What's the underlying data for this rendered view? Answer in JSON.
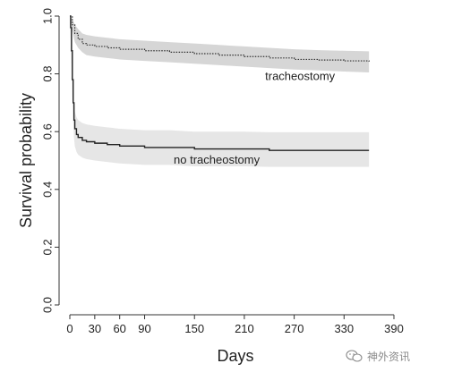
{
  "chart_data": {
    "type": "line",
    "ylabel": "Survival probability",
    "xlabel": "Days",
    "xlim": [
      0,
      390
    ],
    "ylim": [
      0.0,
      1.0
    ],
    "x_ticks": [
      0,
      30,
      60,
      90,
      150,
      210,
      270,
      330,
      390
    ],
    "x_tick_labels": [
      "0",
      "30",
      "60",
      "90",
      "150",
      "210",
      "270",
      "330",
      "390"
    ],
    "y_ticks": [
      0.0,
      0.2,
      0.4,
      0.6,
      0.8,
      1.0
    ],
    "y_tick_labels": [
      "0.0",
      "0.2",
      "0.4",
      "0.6",
      "0.8",
      "1.0"
    ],
    "grid": false,
    "series": [
      {
        "name": "tracheostomy",
        "line_style": "dotted",
        "line_color": "#333333",
        "band_color": "#d6d6d6",
        "x": [
          0,
          3,
          6,
          10,
          15,
          20,
          30,
          45,
          60,
          90,
          120,
          150,
          180,
          210,
          240,
          270,
          300,
          330,
          360
        ],
        "y": [
          1.0,
          0.97,
          0.94,
          0.92,
          0.905,
          0.9,
          0.895,
          0.89,
          0.885,
          0.88,
          0.875,
          0.87,
          0.865,
          0.86,
          0.855,
          0.85,
          0.848,
          0.845,
          0.842
        ],
        "lower": [
          1.0,
          0.95,
          0.91,
          0.89,
          0.875,
          0.865,
          0.86,
          0.855,
          0.85,
          0.845,
          0.84,
          0.835,
          0.83,
          0.825,
          0.82,
          0.815,
          0.812,
          0.808,
          0.805
        ],
        "upper": [
          1.0,
          0.99,
          0.97,
          0.955,
          0.94,
          0.935,
          0.93,
          0.925,
          0.92,
          0.915,
          0.91,
          0.905,
          0.9,
          0.895,
          0.89,
          0.885,
          0.882,
          0.88,
          0.878
        ]
      },
      {
        "name": "no tracheostomy",
        "line_style": "solid",
        "line_color": "#222222",
        "band_color": "#e6e6e6",
        "x": [
          0,
          1,
          2,
          3,
          4,
          5,
          6,
          8,
          10,
          15,
          20,
          30,
          45,
          60,
          90,
          120,
          150,
          180,
          210,
          240,
          270,
          300,
          330,
          360
        ],
        "y": [
          1.0,
          0.96,
          0.88,
          0.78,
          0.7,
          0.64,
          0.61,
          0.59,
          0.58,
          0.57,
          0.565,
          0.56,
          0.555,
          0.55,
          0.545,
          0.545,
          0.54,
          0.54,
          0.54,
          0.535,
          0.535,
          0.535,
          0.535,
          0.535
        ],
        "lower": [
          1.0,
          0.92,
          0.82,
          0.72,
          0.64,
          0.58,
          0.55,
          0.53,
          0.52,
          0.51,
          0.505,
          0.5,
          0.495,
          0.49,
          0.485,
          0.485,
          0.48,
          0.48,
          0.48,
          0.478,
          0.478,
          0.478,
          0.478,
          0.478
        ],
        "upper": [
          1.0,
          0.99,
          0.94,
          0.84,
          0.76,
          0.7,
          0.67,
          0.65,
          0.64,
          0.63,
          0.625,
          0.62,
          0.615,
          0.61,
          0.605,
          0.605,
          0.6,
          0.6,
          0.6,
          0.598,
          0.598,
          0.598,
          0.598,
          0.598
        ]
      }
    ],
    "annotations": [
      {
        "text": "tracheostomy",
        "x": 235,
        "y": 0.79
      },
      {
        "text": "no tracheostomy",
        "x": 125,
        "y": 0.5
      }
    ]
  },
  "watermark": {
    "text": "神外资讯",
    "icon": "wechat-icon"
  }
}
